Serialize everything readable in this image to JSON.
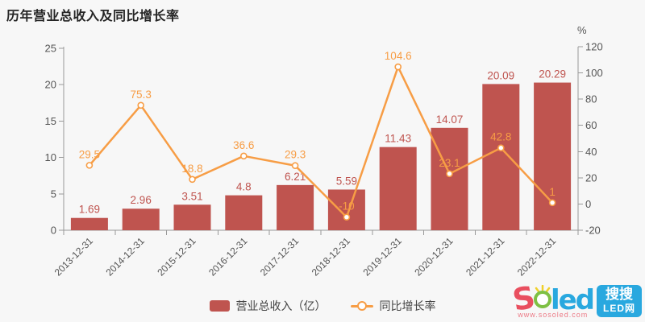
{
  "page": {
    "title": "历年营业总收入及同比增长率"
  },
  "chart_data": {
    "type": "bar",
    "subtype": "bar+line combo, dual y-axis",
    "categories": [
      "2013-12-31",
      "2014-12-31",
      "2015-12-31",
      "2016-12-31",
      "2017-12-31",
      "2018-12-31",
      "2019-12-31",
      "2020-12-31",
      "2021-12-31",
      "2022-12-31"
    ],
    "series": [
      {
        "name": "营业总收入（亿）",
        "type": "bar",
        "yaxis": "left",
        "color": "#bf544f",
        "values": [
          1.69,
          2.96,
          3.51,
          4.8,
          6.21,
          5.59,
          11.43,
          14.07,
          20.09,
          20.29
        ],
        "labels": [
          "1.69",
          "2.96",
          "3.51",
          "4.8",
          "6.21",
          "5.59",
          "11.43",
          "14.07",
          "20.09",
          "20.29"
        ]
      },
      {
        "name": "同比增长率",
        "type": "line",
        "yaxis": "right",
        "color": "#f79d45",
        "values": [
          29.5,
          75.3,
          18.8,
          36.6,
          29.3,
          -10,
          104.6,
          23.1,
          42.8,
          1
        ],
        "labels": [
          "29.5",
          "75.3",
          "18.8",
          "36.6",
          "29.3",
          "-10",
          "104.6",
          "23.1",
          "42.8",
          "1"
        ]
      }
    ],
    "left_axis": {
      "min": 0,
      "max": 25,
      "ticks": [
        "0",
        "5",
        "10",
        "15",
        "20",
        "25"
      ]
    },
    "right_axis": {
      "min": -20,
      "max": 120,
      "ticks": [
        "-20",
        "0",
        "20",
        "40",
        "60",
        "80",
        "100",
        "120"
      ],
      "unit": "%"
    },
    "grid": false,
    "legend_position": "bottom"
  },
  "legend": {
    "items": [
      {
        "label": "营业总收入（亿）",
        "marker": "bar-swatch"
      },
      {
        "label": "同比增长率",
        "marker": "line-circle"
      }
    ]
  },
  "watermark": {
    "brand_first": "S",
    "brand_rest": "led",
    "url": "www.sosoled.com",
    "box_top": "搜搜",
    "box_bottom": "LED网"
  },
  "colors": {
    "background": "#f7f7f7",
    "bar": "#bf544f",
    "line": "#f79d45",
    "axis": "#999999",
    "axis_label": "#555555",
    "title": "#252525",
    "legend_text": "#444444",
    "logo_blue": "#29a8df",
    "logo_pink": "#e94f5f",
    "logo_green": "#7ec043",
    "logo_yellow": "#f0d02a"
  }
}
